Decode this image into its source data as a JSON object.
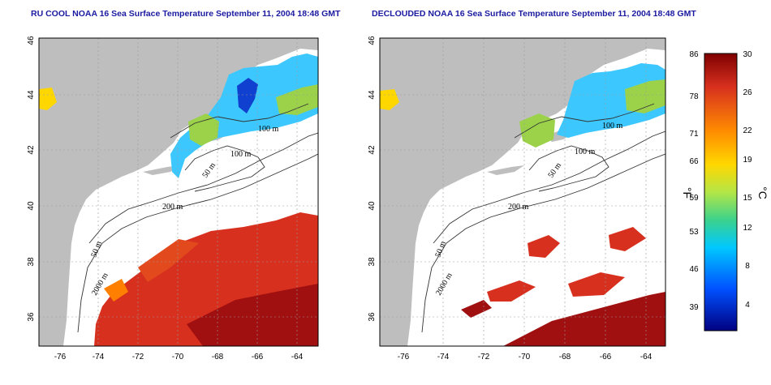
{
  "titles": {
    "left": "RU COOL NOAA 16 Sea Surface Temperature September 11, 2004 18:48 GMT",
    "right": "DECLOUDED NOAA 16 Sea Surface Temperature September 11, 2004 18:48 GMT"
  },
  "axes": {
    "lat_ticks": [
      "46",
      "44",
      "42",
      "40",
      "38",
      "36"
    ],
    "lon_ticks": [
      "-76",
      "-74",
      "-72",
      "-70",
      "-68",
      "-66",
      "-64"
    ]
  },
  "contour_labels": {
    "left": [
      "100 m",
      "100 m",
      "50 m",
      "200 m",
      "50 m",
      "2000 m"
    ],
    "right": [
      "100 m",
      "100 m",
      "50 m",
      "200 m",
      "50 m",
      "2000 m"
    ]
  },
  "colorbar": {
    "fahrenheit_ticks": [
      "86",
      "78",
      "71",
      "66",
      "59",
      "53",
      "46",
      "39"
    ],
    "celsius_ticks": [
      "30",
      "26",
      "22",
      "19",
      "15",
      "12",
      "8",
      "4"
    ],
    "fahrenheit_unit": "°F",
    "celsius_unit": "°C",
    "colors": [
      "#7f0000",
      "#d7301f",
      "#ff7f00",
      "#ffd700",
      "#c8e600",
      "#3cd28c",
      "#00c8ff",
      "#0050ff",
      "#000080"
    ]
  },
  "colors": {
    "land": "#bebebe",
    "ocean_nodata": "#ffffff",
    "warm": "#d7301f",
    "warm_dark": "#a01010",
    "cool": "#3cc8ff",
    "cool_deep": "#1040d0",
    "green": "#9bd24a"
  }
}
